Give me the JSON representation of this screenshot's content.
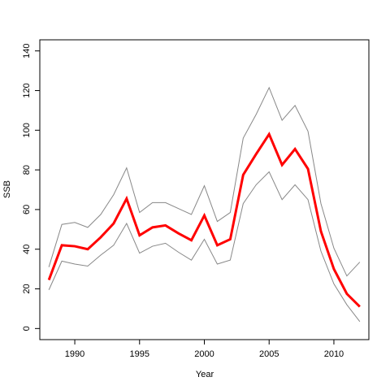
{
  "chart_data": {
    "type": "line",
    "title": "",
    "xlabel": "Year",
    "ylabel": "SSB",
    "xlim": [
      1987.3,
      2012.7
    ],
    "ylim": [
      -5.6,
      145.6
    ],
    "xticks": [
      1990,
      1995,
      2000,
      2005,
      2010
    ],
    "yticks": [
      0,
      20,
      40,
      60,
      80,
      100,
      120,
      140
    ],
    "grid": false,
    "legend": "none",
    "x": [
      1988,
      1989,
      1990,
      1991,
      1992,
      1993,
      1994,
      1995,
      1996,
      1997,
      1998,
      1999,
      2000,
      2001,
      2002,
      2003,
      2004,
      2005,
      2006,
      2007,
      2008,
      2009,
      2010,
      2011,
      2012
    ],
    "series": [
      {
        "role": "upper",
        "color": "#888888",
        "values": [
          31,
          52.5,
          53.5,
          51,
          57.5,
          67.5,
          81,
          58.5,
          63.5,
          63.5,
          60.5,
          57.5,
          72,
          54,
          58.5,
          96,
          108,
          121.5,
          105,
          112.5,
          99.5,
          63,
          40.5,
          26.5,
          33.5
        ]
      },
      {
        "role": "estimate",
        "color": "#ff0000",
        "values": [
          24.5,
          42,
          41.5,
          40,
          46,
          53,
          65.5,
          47,
          51,
          52,
          48,
          44.5,
          57,
          42,
          45,
          77.5,
          88,
          98,
          82.5,
          90.5,
          80.5,
          49,
          30,
          17.5,
          11
        ]
      },
      {
        "role": "lower",
        "color": "#888888",
        "values": [
          19.5,
          34,
          32.5,
          31.5,
          37,
          42,
          53,
          38,
          41.5,
          43,
          38.5,
          34.5,
          45,
          32.5,
          34.5,
          63,
          72.5,
          79,
          65,
          72.5,
          65,
          39,
          22.5,
          12,
          3.5
        ]
      }
    ]
  }
}
